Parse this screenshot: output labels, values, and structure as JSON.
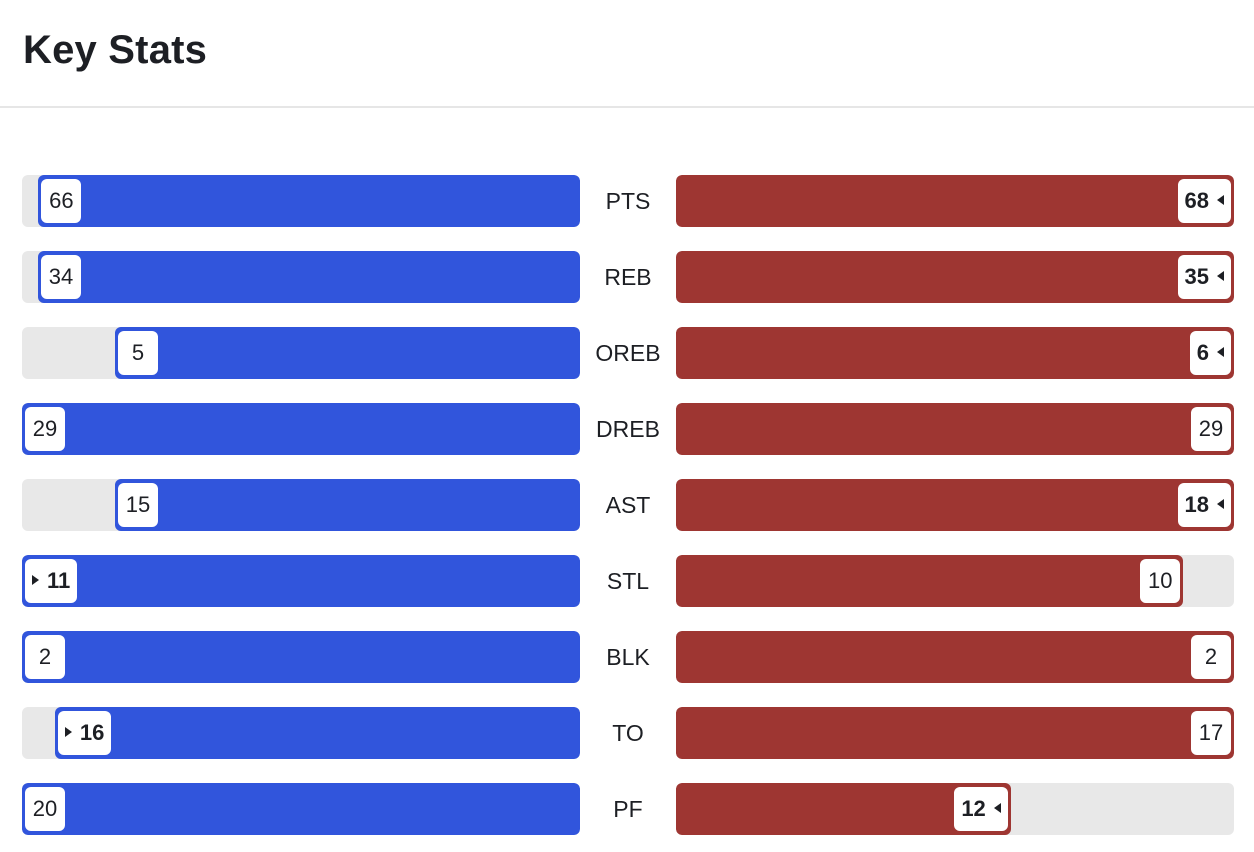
{
  "header": {
    "title": "Key Stats"
  },
  "colors": {
    "left_team": "#3155dc",
    "right_team": "#9e3632",
    "track": "#e8e8e8"
  },
  "chart_data": {
    "type": "bar",
    "title": "Key Stats",
    "categories": [
      "PTS",
      "REB",
      "OREB",
      "DREB",
      "AST",
      "STL",
      "BLK",
      "TO",
      "PF"
    ],
    "series": [
      {
        "values": [
          66,
          34,
          5,
          29,
          15,
          11,
          2,
          16,
          20
        ]
      },
      {
        "values": [
          68,
          35,
          6,
          29,
          18,
          10,
          2,
          17,
          12
        ]
      }
    ],
    "leader": [
      "right",
      "right",
      "right",
      "tie",
      "right",
      "left",
      "tie",
      "left",
      "right"
    ]
  }
}
